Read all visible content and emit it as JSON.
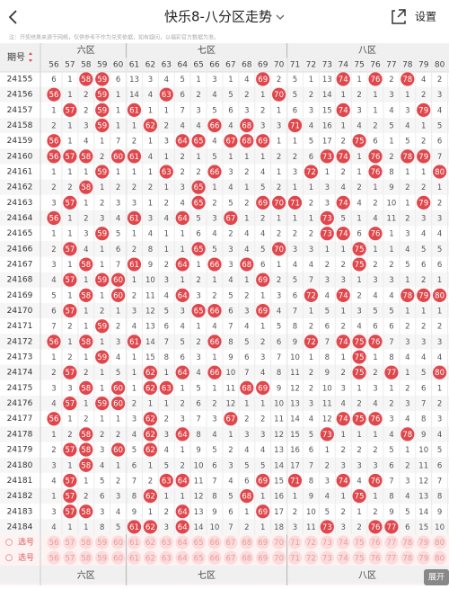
{
  "header": {
    "title": "快乐8-八分区走势",
    "settings": "设置",
    "note": "注：开奖结果来源于网络，仅供参考不作为兑奖依据，如有疑问，以福彩官方数据为准。"
  },
  "table": {
    "issue_header": "期号",
    "regions": [
      {
        "label": "六区",
        "columns": [
          56,
          57,
          58,
          59,
          60
        ]
      },
      {
        "label": "七区",
        "columns": [
          61,
          62,
          63,
          64,
          65,
          66,
          67,
          68,
          69,
          70
        ]
      },
      {
        "label": "八区",
        "columns": [
          71,
          72,
          73,
          74,
          75,
          76,
          77,
          78,
          79,
          80
        ]
      }
    ],
    "rows": [
      {
        "issue": "24155",
        "cells": [
          6,
          1,
          58,
          59,
          6,
          13,
          3,
          4,
          5,
          1,
          3,
          1,
          4,
          69,
          2,
          5,
          1,
          13,
          74,
          1,
          76,
          2,
          78,
          4,
          2
        ]
      },
      {
        "issue": "24156",
        "cells": [
          56,
          1,
          2,
          59,
          1,
          14,
          4,
          63,
          6,
          2,
          4,
          5,
          2,
          1,
          70,
          5,
          2,
          14,
          1,
          2,
          1,
          3,
          1,
          2,
          3
        ]
      },
      {
        "issue": "24157",
        "cells": [
          1,
          57,
          2,
          59,
          1,
          61,
          1,
          1,
          7,
          3,
          5,
          6,
          3,
          2,
          1,
          6,
          3,
          15,
          74,
          3,
          1,
          4,
          3,
          79,
          4
        ]
      },
      {
        "issue": "24158",
        "cells": [
          2,
          1,
          3,
          59,
          1,
          1,
          62,
          2,
          4,
          4,
          66,
          4,
          68,
          3,
          3,
          71,
          4,
          16,
          1,
          4,
          2,
          5,
          4,
          1,
          5
        ]
      },
      {
        "issue": "24159",
        "cells": [
          56,
          1,
          4,
          1,
          7,
          2,
          1,
          3,
          64,
          65,
          4,
          67,
          68,
          69,
          1,
          1,
          5,
          17,
          2,
          75,
          6,
          1,
          5,
          2,
          6
        ]
      },
      {
        "issue": "24160",
        "cells": [
          56,
          57,
          58,
          2,
          60,
          61,
          4,
          1,
          2,
          1,
          5,
          1,
          1,
          1,
          2,
          2,
          6,
          73,
          74,
          1,
          76,
          2,
          78,
          79,
          7
        ]
      },
      {
        "issue": "24161",
        "cells": [
          1,
          1,
          1,
          59,
          1,
          1,
          1,
          63,
          2,
          2,
          66,
          3,
          2,
          4,
          1,
          3,
          72,
          1,
          2,
          1,
          76,
          8,
          1,
          1,
          80
        ]
      },
      {
        "issue": "24162",
        "cells": [
          2,
          2,
          58,
          1,
          2,
          2,
          2,
          1,
          3,
          65,
          1,
          4,
          1,
          5,
          2,
          1,
          1,
          3,
          4,
          2,
          1,
          9,
          2,
          2,
          1
        ]
      },
      {
        "issue": "24163",
        "cells": [
          3,
          57,
          1,
          2,
          3,
          3,
          1,
          2,
          4,
          65,
          2,
          5,
          2,
          69,
          70,
          71,
          2,
          3,
          74,
          4,
          2,
          10,
          1,
          79,
          2
        ]
      },
      {
        "issue": "24164",
        "cells": [
          56,
          1,
          2,
          3,
          4,
          61,
          3,
          4,
          64,
          5,
          3,
          67,
          1,
          2,
          1,
          1,
          1,
          73,
          5,
          1,
          4,
          11,
          2,
          3,
          3
        ]
      },
      {
        "issue": "24165",
        "cells": [
          1,
          1,
          3,
          59,
          5,
          1,
          4,
          1,
          1,
          6,
          4,
          2,
          4,
          4,
          2,
          2,
          2,
          73,
          74,
          6,
          76,
          1,
          3,
          4,
          4
        ]
      },
      {
        "issue": "24166",
        "cells": [
          2,
          57,
          4,
          1,
          6,
          2,
          8,
          1,
          1,
          65,
          5,
          3,
          4,
          5,
          70,
          3,
          3,
          1,
          1,
          75,
          1,
          1,
          4,
          5,
          5
        ]
      },
      {
        "issue": "24167",
        "cells": [
          3,
          1,
          58,
          1,
          7,
          61,
          9,
          2,
          64,
          1,
          66,
          3,
          68,
          6,
          1,
          4,
          4,
          2,
          2,
          75,
          2,
          2,
          5,
          6,
          6
        ]
      },
      {
        "issue": "24168",
        "cells": [
          4,
          57,
          1,
          59,
          60,
          1,
          10,
          3,
          1,
          2,
          1,
          4,
          1,
          69,
          2,
          5,
          7,
          3,
          3,
          1,
          3,
          3,
          1,
          2,
          1
        ]
      },
      {
        "issue": "24169",
        "cells": [
          5,
          1,
          58,
          1,
          60,
          2,
          11,
          4,
          64,
          3,
          2,
          5,
          2,
          1,
          3,
          6,
          72,
          4,
          74,
          2,
          4,
          4,
          78,
          79,
          80
        ]
      },
      {
        "issue": "24170",
        "cells": [
          6,
          57,
          1,
          2,
          1,
          3,
          12,
          5,
          3,
          65,
          66,
          6,
          3,
          69,
          4,
          7,
          1,
          5,
          1,
          3,
          5,
          5,
          1,
          1,
          1
        ]
      },
      {
        "issue": "24171",
        "cells": [
          7,
          2,
          1,
          59,
          2,
          4,
          13,
          6,
          4,
          1,
          4,
          7,
          4,
          1,
          5,
          8,
          2,
          6,
          2,
          4,
          6,
          6,
          2,
          2,
          2
        ]
      },
      {
        "issue": "24172",
        "cells": [
          56,
          1,
          58,
          1,
          3,
          61,
          14,
          7,
          5,
          2,
          66,
          8,
          5,
          2,
          6,
          9,
          72,
          7,
          74,
          75,
          76,
          7,
          3,
          3,
          3
        ]
      },
      {
        "issue": "24173",
        "cells": [
          1,
          2,
          1,
          59,
          4,
          1,
          15,
          8,
          6,
          3,
          1,
          9,
          6,
          3,
          7,
          10,
          1,
          8,
          1,
          75,
          1,
          8,
          4,
          4,
          4
        ]
      },
      {
        "issue": "24174",
        "cells": [
          2,
          57,
          2,
          1,
          5,
          1,
          62,
          1,
          64,
          4,
          66,
          10,
          7,
          4,
          8,
          11,
          2,
          9,
          2,
          75,
          2,
          77,
          1,
          5,
          80
        ]
      },
      {
        "issue": "24175",
        "cells": [
          3,
          3,
          58,
          1,
          60,
          1,
          62,
          63,
          1,
          5,
          1,
          11,
          68,
          69,
          9,
          12,
          2,
          10,
          3,
          1,
          3,
          1,
          2,
          6,
          1
        ]
      },
      {
        "issue": "24176",
        "cells": [
          4,
          57,
          1,
          59,
          60,
          2,
          1,
          1,
          2,
          6,
          2,
          12,
          1,
          1,
          10,
          13,
          3,
          11,
          4,
          2,
          4,
          2,
          3,
          7,
          2
        ]
      },
      {
        "issue": "24177",
        "cells": [
          56,
          1,
          2,
          1,
          1,
          3,
          62,
          2,
          3,
          7,
          3,
          67,
          2,
          2,
          11,
          14,
          4,
          12,
          74,
          75,
          76,
          3,
          4,
          8,
          3
        ]
      },
      {
        "issue": "24178",
        "cells": [
          1,
          2,
          58,
          2,
          2,
          4,
          62,
          3,
          64,
          8,
          4,
          1,
          3,
          3,
          12,
          15,
          5,
          73,
          1,
          1,
          1,
          4,
          78,
          9,
          4
        ]
      },
      {
        "issue": "24179",
        "cells": [
          2,
          57,
          58,
          3,
          60,
          5,
          62,
          4,
          1,
          9,
          5,
          2,
          4,
          4,
          13,
          16,
          6,
          1,
          2,
          2,
          2,
          5,
          1,
          10,
          5
        ]
      },
      {
        "issue": "24180",
        "cells": [
          3,
          1,
          58,
          4,
          1,
          6,
          1,
          5,
          2,
          10,
          6,
          3,
          5,
          5,
          14,
          17,
          7,
          2,
          3,
          3,
          3,
          6,
          2,
          11,
          6
        ]
      },
      {
        "issue": "24181",
        "cells": [
          4,
          57,
          1,
          5,
          2,
          7,
          2,
          63,
          64,
          11,
          7,
          4,
          6,
          69,
          15,
          71,
          8,
          3,
          74,
          4,
          76,
          7,
          3,
          12,
          7
        ]
      },
      {
        "issue": "24182",
        "cells": [
          1,
          57,
          2,
          6,
          3,
          8,
          62,
          1,
          1,
          12,
          8,
          5,
          68,
          1,
          16,
          1,
          9,
          4,
          1,
          75,
          1,
          8,
          4,
          13,
          8
        ]
      },
      {
        "issue": "24183",
        "cells": [
          3,
          57,
          58,
          3,
          4,
          9,
          1,
          2,
          64,
          13,
          9,
          6,
          1,
          69,
          17,
          2,
          10,
          5,
          2,
          1,
          2,
          9,
          5,
          14,
          9
        ]
      },
      {
        "issue": "24184",
        "cells": [
          4,
          1,
          1,
          8,
          5,
          61,
          62,
          3,
          64,
          14,
          10,
          7,
          2,
          1,
          18,
          3,
          11,
          73,
          3,
          2,
          76,
          77,
          6,
          15,
          10
        ]
      }
    ],
    "select_label": "选号"
  },
  "expand": "展开"
}
